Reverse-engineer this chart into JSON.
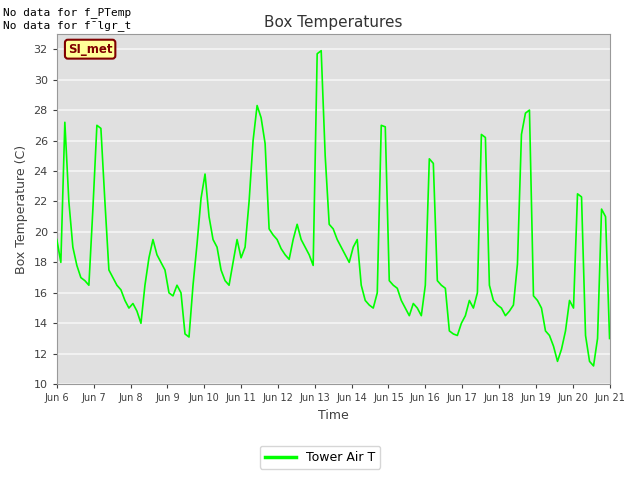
{
  "title": "Box Temperatures",
  "xlabel": "Time",
  "ylabel": "Box Temperature (C)",
  "line_color": "#00FF00",
  "line_width": 1.2,
  "ylim": [
    10,
    33
  ],
  "yticks": [
    10,
    12,
    14,
    16,
    18,
    20,
    22,
    24,
    26,
    28,
    30,
    32
  ],
  "bg_color": "#E0E0E0",
  "grid_color": "#F5F5F5",
  "text_color": "#404040",
  "no_data_text1": "No data for f_PTemp",
  "no_data_text2": "No data for f¯lgr_t",
  "legend_label": "Tower Air T",
  "si_met_text": "SI_met",
  "si_met_bg": "#FFFF99",
  "si_met_border": "#800000",
  "xtick_labels": [
    "Jun 6",
    "Jun 7",
    "Jun 8",
    "Jun 9",
    "Jun 10",
    "Jun 11",
    "Jun 12",
    "Jun 13",
    "Jun 14",
    "Jun 15",
    "Jun 16",
    "Jun 17",
    "Jun 18",
    "Jun 19",
    "Jun 20",
    "Jun 21"
  ],
  "y_values": [
    19.5,
    18.0,
    27.2,
    22.0,
    19.0,
    17.8,
    17.0,
    16.8,
    16.5,
    21.5,
    27.0,
    26.8,
    22.0,
    17.5,
    17.0,
    16.5,
    16.2,
    15.5,
    15.0,
    15.3,
    14.8,
    14.0,
    16.5,
    18.3,
    19.5,
    18.5,
    18.0,
    17.5,
    16.0,
    15.8,
    16.5,
    16.0,
    13.3,
    13.1,
    16.5,
    19.2,
    22.2,
    23.8,
    21.0,
    19.5,
    19.0,
    17.5,
    16.8,
    16.5,
    18.0,
    19.5,
    18.3,
    19.0,
    22.0,
    26.0,
    28.3,
    27.5,
    25.8,
    20.2,
    19.8,
    19.5,
    18.9,
    18.5,
    18.2,
    19.5,
    20.5,
    19.5,
    19.0,
    18.5,
    17.8,
    31.7,
    31.9,
    25.0,
    20.5,
    20.2,
    19.5,
    19.0,
    18.5,
    18.0,
    19.0,
    19.5,
    16.5,
    15.5,
    15.2,
    15.0,
    16.0,
    27.0,
    26.9,
    16.8,
    16.5,
    16.3,
    15.5,
    15.0,
    14.5,
    15.3,
    15.0,
    14.5,
    16.5,
    24.8,
    24.5,
    16.8,
    16.5,
    16.3,
    13.5,
    13.3,
    13.2,
    14.0,
    14.5,
    15.5,
    15.0,
    16.0,
    26.4,
    26.2,
    16.5,
    15.5,
    15.2,
    15.0,
    14.5,
    14.8,
    15.2,
    17.9,
    26.4,
    27.8,
    28.0,
    15.8,
    15.5,
    15.0,
    13.5,
    13.2,
    12.5,
    11.5,
    12.3,
    13.5,
    15.5,
    15.0,
    22.5,
    22.3,
    13.2,
    11.5,
    11.2,
    13.0,
    21.5,
    21.0,
    13.0
  ],
  "figsize": [
    6.4,
    4.8
  ],
  "dpi": 100
}
